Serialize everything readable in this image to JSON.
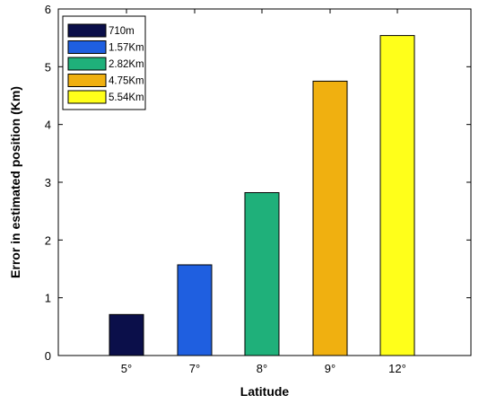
{
  "chart_data": {
    "type": "bar",
    "categories": [
      "5°",
      "7°",
      "8°",
      "9°",
      "12°"
    ],
    "values": [
      0.71,
      1.57,
      2.82,
      4.75,
      5.54
    ],
    "colors": [
      "#0b0f4a",
      "#1f5fe0",
      "#1fb07a",
      "#f0b010",
      "#ffff1a"
    ],
    "xlabel": "Latitude",
    "ylabel": "Error in estimated position (Km)",
    "ylim": [
      0,
      6
    ],
    "yticks": [
      0,
      1,
      2,
      3,
      4,
      5,
      6
    ],
    "grid": false,
    "legend": {
      "placement": "top-left",
      "entries": [
        "710m",
        "1.57Km",
        "2.82Km",
        "4.75Km",
        "5.54Km"
      ]
    }
  }
}
